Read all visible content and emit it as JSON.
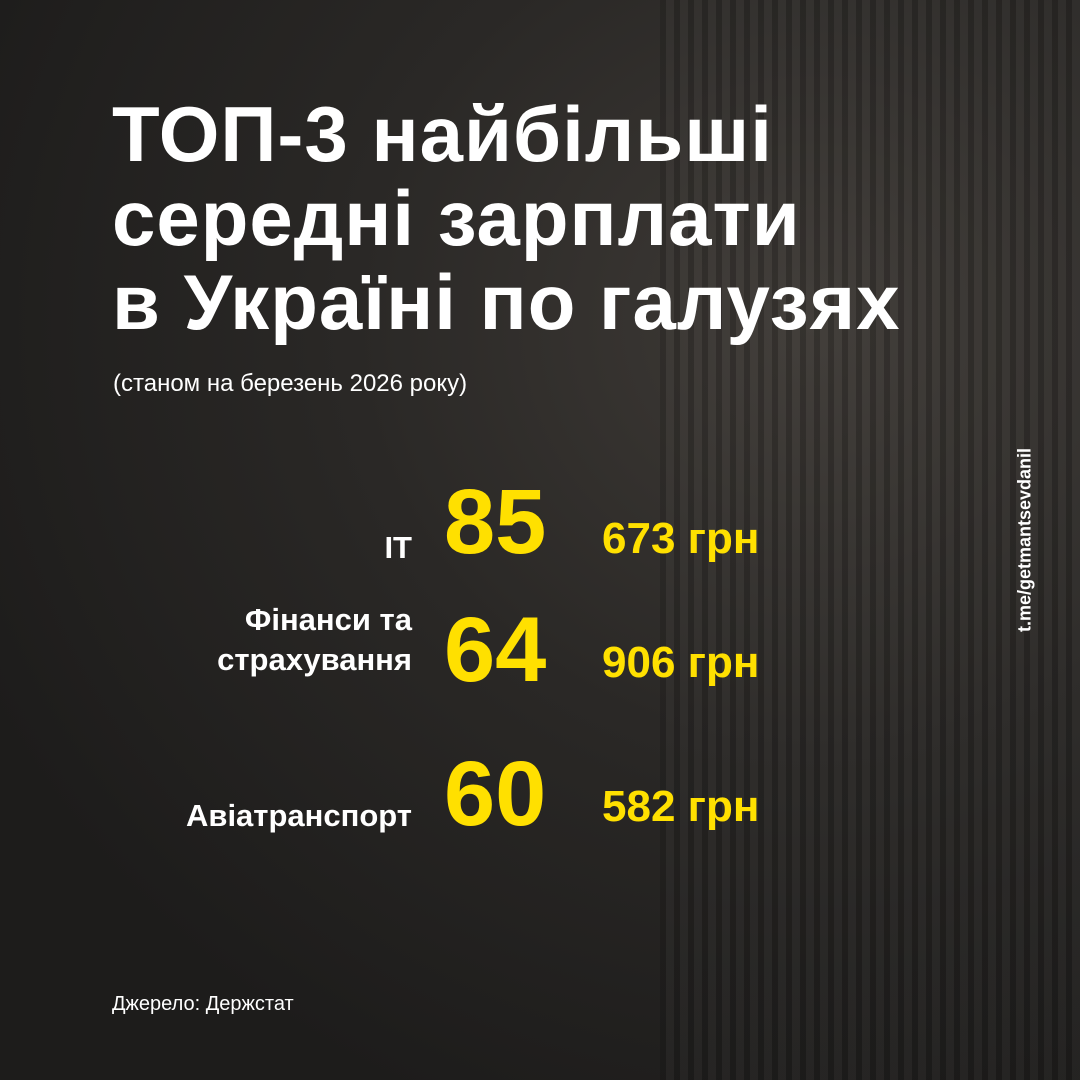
{
  "title_lines": [
    "ТОП-3 найбільші",
    "середні зарплати",
    "в Україні по галузях"
  ],
  "subtitle": "(станом на березень 2026 року)",
  "items": [
    {
      "label_lines": [
        "ІТ"
      ],
      "thousands": "85",
      "rest": "673 грн"
    },
    {
      "label_lines": [
        "Фінанси та",
        "страхування"
      ],
      "thousands": "64",
      "rest": "906 грн"
    },
    {
      "label_lines": [
        "Авіатранспорт"
      ],
      "thousands": "60",
      "rest": "582 грн"
    }
  ],
  "side_link": "t.me/getmantsevdanil",
  "source": "Джерело: Держстат",
  "colors": {
    "accent": "#ffe000",
    "text": "#ffffff"
  }
}
